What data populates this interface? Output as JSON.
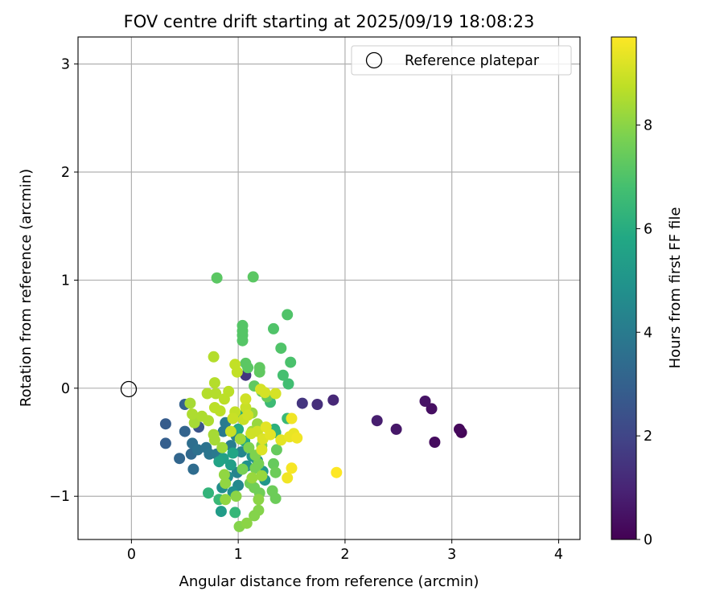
{
  "chart_data": {
    "type": "scatter",
    "title": "FOV centre drift starting at 2025/09/19 18:08:23",
    "xlabel": "Angular distance from reference (arcmin)",
    "ylabel": "Rotation from reference (arcmin)",
    "xlim": [
      -0.5,
      4.2
    ],
    "ylim": [
      -1.4,
      3.25
    ],
    "xticks": [
      0,
      1,
      2,
      3,
      4
    ],
    "yticks": [
      -1,
      0,
      1,
      2,
      3
    ],
    "xtick_labels": [
      "0",
      "1",
      "2",
      "3",
      "4"
    ],
    "ytick_labels": [
      "−1",
      "0",
      "1",
      "2",
      "3"
    ],
    "grid": true,
    "legend": {
      "position": "top-right",
      "entries": [
        "Reference platepar"
      ]
    },
    "reference_point": {
      "label": "Reference platepar",
      "x": 0,
      "y": 0
    },
    "colorbar": {
      "label": "Hours from first FF file",
      "range": [
        0,
        9.7
      ],
      "ticks": [
        0,
        2,
        4,
        6,
        8
      ],
      "tick_labels": [
        "0",
        "2",
        "4",
        "6",
        "8"
      ],
      "colormap": "viridis"
    },
    "points": [
      {
        "x": 3.09,
        "y": -0.41,
        "t": 0.1
      },
      {
        "x": 3.07,
        "y": -0.38,
        "t": 0.2
      },
      {
        "x": 2.84,
        "y": -0.5,
        "t": 0.3
      },
      {
        "x": 2.81,
        "y": -0.19,
        "t": 0.4
      },
      {
        "x": 2.75,
        "y": -0.12,
        "t": 0.5
      },
      {
        "x": 2.48,
        "y": -0.38,
        "t": 0.6
      },
      {
        "x": 2.3,
        "y": -0.3,
        "t": 0.8
      },
      {
        "x": 1.89,
        "y": -0.11,
        "t": 1.1
      },
      {
        "x": 1.74,
        "y": -0.15,
        "t": 1.3
      },
      {
        "x": 1.6,
        "y": -0.14,
        "t": 1.5
      },
      {
        "x": 1.07,
        "y": 0.12,
        "t": 1.5
      },
      {
        "x": 0.63,
        "y": -0.36,
        "t": 2.5
      },
      {
        "x": 0.32,
        "y": -0.33,
        "t": 2.8
      },
      {
        "x": 0.32,
        "y": -0.51,
        "t": 2.9
      },
      {
        "x": 0.5,
        "y": -0.15,
        "t": 3.0
      },
      {
        "x": 0.5,
        "y": -0.4,
        "t": 3.1
      },
      {
        "x": 0.45,
        "y": -0.65,
        "t": 3.2
      },
      {
        "x": 0.56,
        "y": -0.61,
        "t": 3.3
      },
      {
        "x": 0.58,
        "y": -0.75,
        "t": 3.4
      },
      {
        "x": 0.57,
        "y": -0.51,
        "t": 3.5
      },
      {
        "x": 0.62,
        "y": -0.57,
        "t": 3.6
      },
      {
        "x": 0.7,
        "y": -0.55,
        "t": 3.7
      },
      {
        "x": 0.73,
        "y": -0.61,
        "t": 3.8
      },
      {
        "x": 0.8,
        "y": -0.61,
        "t": 3.9
      },
      {
        "x": 0.86,
        "y": -0.4,
        "t": 3.9
      },
      {
        "x": 0.88,
        "y": -0.32,
        "t": 4.0
      },
      {
        "x": 0.93,
        "y": -0.53,
        "t": 4.1
      },
      {
        "x": 0.98,
        "y": -0.44,
        "t": 4.2
      },
      {
        "x": 0.99,
        "y": -0.78,
        "t": 4.3
      },
      {
        "x": 1.03,
        "y": -0.59,
        "t": 4.4
      },
      {
        "x": 1.0,
        "y": -0.9,
        "t": 4.5
      },
      {
        "x": 0.9,
        "y": -0.82,
        "t": 4.6
      },
      {
        "x": 0.85,
        "y": -0.92,
        "t": 4.7
      },
      {
        "x": 0.95,
        "y": -0.96,
        "t": 4.8
      },
      {
        "x": 1.08,
        "y": -0.72,
        "t": 4.9
      },
      {
        "x": 1.13,
        "y": -0.63,
        "t": 5.0
      },
      {
        "x": 1.18,
        "y": -0.67,
        "t": 5.0
      },
      {
        "x": 1.25,
        "y": -0.85,
        "t": 5.1
      },
      {
        "x": 1.23,
        "y": -0.77,
        "t": 5.2
      },
      {
        "x": 0.84,
        "y": -1.14,
        "t": 5.3
      },
      {
        "x": 0.93,
        "y": -0.71,
        "t": 5.4
      },
      {
        "x": 0.86,
        "y": -0.65,
        "t": 5.5
      },
      {
        "x": 0.82,
        "y": -0.68,
        "t": 5.6
      },
      {
        "x": 0.95,
        "y": -0.6,
        "t": 5.7
      },
      {
        "x": 1.06,
        "y": -0.49,
        "t": 5.8
      },
      {
        "x": 1.0,
        "y": -0.38,
        "t": 5.9
      },
      {
        "x": 1.05,
        "y": -0.25,
        "t": 6.0
      },
      {
        "x": 1.34,
        "y": -0.38,
        "t": 6.1
      },
      {
        "x": 1.35,
        "y": -0.41,
        "t": 6.2
      },
      {
        "x": 0.72,
        "y": -0.97,
        "t": 6.3
      },
      {
        "x": 0.97,
        "y": -1.15,
        "t": 6.4
      },
      {
        "x": 0.82,
        "y": -1.03,
        "t": 6.5
      },
      {
        "x": 1.46,
        "y": -0.28,
        "t": 6.5
      },
      {
        "x": 1.3,
        "y": -0.13,
        "t": 6.6
      },
      {
        "x": 1.47,
        "y": 0.04,
        "t": 6.7
      },
      {
        "x": 1.42,
        "y": 0.12,
        "t": 6.8
      },
      {
        "x": 1.49,
        "y": 0.24,
        "t": 6.9
      },
      {
        "x": 1.4,
        "y": 0.37,
        "t": 7.0
      },
      {
        "x": 1.33,
        "y": 0.55,
        "t": 7.0
      },
      {
        "x": 1.46,
        "y": 0.68,
        "t": 7.0
      },
      {
        "x": 1.04,
        "y": 0.49,
        "t": 7.1
      },
      {
        "x": 1.04,
        "y": 0.44,
        "t": 7.1
      },
      {
        "x": 1.04,
        "y": 0.53,
        "t": 7.1
      },
      {
        "x": 1.04,
        "y": 0.58,
        "t": 7.1
      },
      {
        "x": 1.07,
        "y": 0.23,
        "t": 7.2
      },
      {
        "x": 1.09,
        "y": 0.19,
        "t": 7.2
      },
      {
        "x": 0.8,
        "y": 1.02,
        "t": 7.2
      },
      {
        "x": 1.14,
        "y": 1.03,
        "t": 7.2
      },
      {
        "x": 1.2,
        "y": 0.19,
        "t": 7.3
      },
      {
        "x": 1.2,
        "y": 0.15,
        "t": 7.3
      },
      {
        "x": 1.15,
        "y": 0.02,
        "t": 7.3
      },
      {
        "x": 1.22,
        "y": -0.03,
        "t": 7.3
      },
      {
        "x": 1.27,
        "y": -0.08,
        "t": 7.4
      },
      {
        "x": 1.36,
        "y": -0.57,
        "t": 7.4
      },
      {
        "x": 1.33,
        "y": -0.7,
        "t": 7.4
      },
      {
        "x": 1.35,
        "y": -0.78,
        "t": 7.5
      },
      {
        "x": 1.32,
        "y": -0.95,
        "t": 7.5
      },
      {
        "x": 1.35,
        "y": -1.02,
        "t": 7.5
      },
      {
        "x": 1.11,
        "y": -0.88,
        "t": 7.6
      },
      {
        "x": 1.15,
        "y": -0.92,
        "t": 7.6
      },
      {
        "x": 1.2,
        "y": -0.97,
        "t": 7.6
      },
      {
        "x": 1.04,
        "y": -0.75,
        "t": 7.7
      },
      {
        "x": 1.16,
        "y": -0.74,
        "t": 7.7
      },
      {
        "x": 1.19,
        "y": -0.7,
        "t": 7.7
      },
      {
        "x": 1.1,
        "y": -0.55,
        "t": 7.8
      },
      {
        "x": 1.16,
        "y": -0.62,
        "t": 7.8
      },
      {
        "x": 1.22,
        "y": -0.53,
        "t": 7.8
      },
      {
        "x": 1.19,
        "y": -1.13,
        "t": 7.9
      },
      {
        "x": 1.15,
        "y": -1.18,
        "t": 7.9
      },
      {
        "x": 1.01,
        "y": -1.28,
        "t": 7.9
      },
      {
        "x": 1.08,
        "y": -1.25,
        "t": 8.0
      },
      {
        "x": 1.19,
        "y": -1.03,
        "t": 8.0
      },
      {
        "x": 0.98,
        "y": -1.0,
        "t": 8.0
      },
      {
        "x": 0.88,
        "y": -1.03,
        "t": 8.1
      },
      {
        "x": 0.88,
        "y": -0.88,
        "t": 8.1
      },
      {
        "x": 0.87,
        "y": -0.8,
        "t": 8.1
      },
      {
        "x": 1.22,
        "y": -0.81,
        "t": 8.2
      },
      {
        "x": 1.13,
        "y": -0.83,
        "t": 8.2
      },
      {
        "x": 1.13,
        "y": -0.23,
        "t": 8.2
      },
      {
        "x": 1.18,
        "y": -0.33,
        "t": 8.2
      },
      {
        "x": 1.13,
        "y": -0.4,
        "t": 8.3
      },
      {
        "x": 1.02,
        "y": -0.47,
        "t": 8.3
      },
      {
        "x": 0.85,
        "y": -0.55,
        "t": 8.3
      },
      {
        "x": 0.78,
        "y": -0.48,
        "t": 8.4
      },
      {
        "x": 0.77,
        "y": -0.43,
        "t": 8.4
      },
      {
        "x": 0.59,
        "y": -0.32,
        "t": 8.4
      },
      {
        "x": 0.55,
        "y": -0.14,
        "t": 8.4
      },
      {
        "x": 0.57,
        "y": -0.24,
        "t": 8.5
      },
      {
        "x": 0.66,
        "y": -0.26,
        "t": 8.5
      },
      {
        "x": 0.72,
        "y": -0.3,
        "t": 8.5
      },
      {
        "x": 0.71,
        "y": -0.05,
        "t": 8.6
      },
      {
        "x": 0.79,
        "y": -0.05,
        "t": 8.6
      },
      {
        "x": 0.78,
        "y": 0.05,
        "t": 8.6
      },
      {
        "x": 0.77,
        "y": 0.29,
        "t": 8.6
      },
      {
        "x": 0.78,
        "y": -0.18,
        "t": 8.7
      },
      {
        "x": 0.83,
        "y": -0.21,
        "t": 8.7
      },
      {
        "x": 0.87,
        "y": -0.1,
        "t": 8.7
      },
      {
        "x": 0.91,
        "y": -0.03,
        "t": 8.7
      },
      {
        "x": 0.97,
        "y": 0.22,
        "t": 8.8
      },
      {
        "x": 0.99,
        "y": 0.15,
        "t": 8.8
      },
      {
        "x": 0.97,
        "y": -0.22,
        "t": 8.8
      },
      {
        "x": 0.95,
        "y": -0.28,
        "t": 8.9
      },
      {
        "x": 0.93,
        "y": -0.4,
        "t": 8.9
      },
      {
        "x": 1.05,
        "y": -0.29,
        "t": 8.9
      },
      {
        "x": 1.07,
        "y": -0.18,
        "t": 8.9
      },
      {
        "x": 1.07,
        "y": -0.1,
        "t": 9.0
      },
      {
        "x": 1.09,
        "y": -0.25,
        "t": 9.0
      },
      {
        "x": 1.12,
        "y": -0.42,
        "t": 9.0
      },
      {
        "x": 1.18,
        "y": -0.4,
        "t": 9.0
      },
      {
        "x": 1.21,
        "y": -0.01,
        "t": 9.1
      },
      {
        "x": 1.25,
        "y": -0.04,
        "t": 9.1
      },
      {
        "x": 1.35,
        "y": -0.05,
        "t": 9.1
      },
      {
        "x": 1.22,
        "y": -0.57,
        "t": 9.2
      },
      {
        "x": 1.23,
        "y": -0.47,
        "t": 9.2
      },
      {
        "x": 1.26,
        "y": -0.36,
        "t": 9.3
      },
      {
        "x": 1.3,
        "y": -0.43,
        "t": 9.3
      },
      {
        "x": 1.4,
        "y": -0.48,
        "t": 9.3
      },
      {
        "x": 1.48,
        "y": -0.45,
        "t": 9.4
      },
      {
        "x": 1.52,
        "y": -0.42,
        "t": 9.4
      },
      {
        "x": 1.55,
        "y": -0.46,
        "t": 9.5
      },
      {
        "x": 1.5,
        "y": -0.28,
        "t": 9.5
      },
      {
        "x": 1.46,
        "y": -0.83,
        "t": 9.5
      },
      {
        "x": 1.5,
        "y": -0.74,
        "t": 9.6
      },
      {
        "x": 1.92,
        "y": -0.78,
        "t": 9.7
      }
    ]
  }
}
